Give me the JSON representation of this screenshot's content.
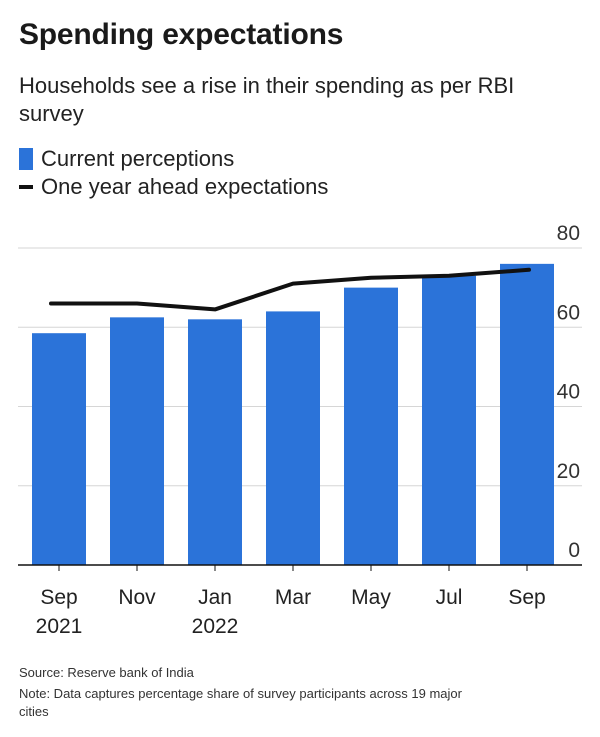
{
  "chart_data": {
    "type": "bar",
    "title": "Spending expectations",
    "subtitle": "Households see a rise in their spending as per RBI survey",
    "categories": [
      "Sep|2021",
      "Nov",
      "Jan|2022",
      "Mar",
      "May",
      "Jul",
      "Sep"
    ],
    "series": [
      {
        "name": "Current perceptions",
        "type": "bar",
        "color": "#2b73d9",
        "values": [
          58.5,
          62.5,
          62,
          64,
          70,
          73,
          76
        ]
      },
      {
        "name": "One year ahead expectations",
        "type": "line",
        "color": "#111111",
        "values": [
          66,
          66,
          64.5,
          71,
          72.5,
          73,
          74.5
        ]
      }
    ],
    "ylim": [
      0,
      80
    ],
    "yticks": [
      0,
      20,
      40,
      60,
      80
    ],
    "xlabel": "",
    "ylabel": "",
    "grid": true,
    "y_axis_side": "right"
  },
  "footer": {
    "source": "Source: Reserve bank of India",
    "note": "Note: Data captures percentage share of survey participants across 19 major cities"
  }
}
